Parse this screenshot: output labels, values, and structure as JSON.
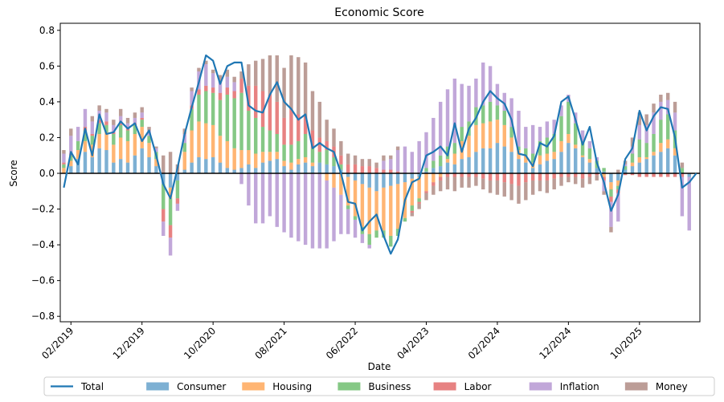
{
  "chart_data": {
    "type": "bar",
    "subtype": "stacked-bar-with-line",
    "title": "Economic Score",
    "xlabel": "Date",
    "ylabel": "Score",
    "ylim": [
      -0.82,
      0.85
    ],
    "yticks": [
      -0.8,
      -0.6,
      -0.4,
      -0.2,
      0.0,
      0.2,
      0.4,
      0.6,
      0.8
    ],
    "ytick_labels": [
      "−0.8",
      "−0.6",
      "−0.4",
      "−0.2",
      "0.0",
      "0.2",
      "0.4",
      "0.6",
      "0.8"
    ],
    "x_tick_labels": [
      "02/2019",
      "12/2019",
      "10/2020",
      "08/2021",
      "06/2022",
      "04/2023",
      "02/2024",
      "12/2024",
      "10/2025"
    ],
    "x_tick_every": 10,
    "x_tick_offset": 1,
    "grid": false,
    "legend_position": "bottom",
    "categories": [
      "2019-01",
      "2019-02",
      "2019-03",
      "2019-04",
      "2019-05",
      "2019-06",
      "2019-07",
      "2019-08",
      "2019-09",
      "2019-10",
      "2019-11",
      "2019-12",
      "2020-01",
      "2020-02",
      "2020-03",
      "2020-04",
      "2020-05",
      "2020-06",
      "2020-07",
      "2020-08",
      "2020-09",
      "2020-10",
      "2020-11",
      "2020-12",
      "2021-01",
      "2021-02",
      "2021-03",
      "2021-04",
      "2021-05",
      "2021-06",
      "2021-07",
      "2021-08",
      "2021-09",
      "2021-10",
      "2021-11",
      "2021-12",
      "2022-01",
      "2022-02",
      "2022-03",
      "2022-04",
      "2022-05",
      "2022-06",
      "2022-07",
      "2022-08",
      "2022-09",
      "2022-10",
      "2022-11",
      "2022-12",
      "2023-01",
      "2023-02",
      "2023-03",
      "2023-04",
      "2023-05",
      "2023-06",
      "2023-07",
      "2023-08",
      "2023-09",
      "2023-10",
      "2023-11",
      "2023-12",
      "2024-01",
      "2024-02",
      "2024-03",
      "2024-04",
      "2024-05",
      "2024-06",
      "2024-07",
      "2024-08",
      "2024-09",
      "2024-10",
      "2024-11",
      "2024-12",
      "2025-01",
      "2025-02",
      "2025-03",
      "2025-04",
      "2025-05",
      "2025-06",
      "2025-07",
      "2025-08",
      "2025-09",
      "2025-10",
      "2025-11",
      "2025-12",
      "2026-01",
      "2026-02",
      "2026-03",
      "2026-04",
      "2026-05",
      "2026-06"
    ],
    "total": [
      -0.08,
      0.12,
      0.05,
      0.25,
      0.1,
      0.33,
      0.22,
      0.23,
      0.29,
      0.25,
      0.28,
      0.18,
      0.24,
      0.1,
      -0.06,
      -0.14,
      0.03,
      0.22,
      0.37,
      0.51,
      0.66,
      0.63,
      0.5,
      0.6,
      0.62,
      0.62,
      0.38,
      0.35,
      0.34,
      0.44,
      0.51,
      0.4,
      0.36,
      0.3,
      0.33,
      0.14,
      0.17,
      0.14,
      0.12,
      0.0,
      -0.16,
      -0.17,
      -0.32,
      -0.27,
      -0.23,
      -0.35,
      -0.45,
      -0.37,
      -0.15,
      -0.05,
      -0.03,
      0.1,
      0.12,
      0.15,
      0.1,
      0.28,
      0.12,
      0.25,
      0.31,
      0.4,
      0.46,
      0.42,
      0.39,
      0.3,
      0.11,
      0.1,
      0.04,
      0.17,
      0.15,
      0.21,
      0.4,
      0.43,
      0.3,
      0.16,
      0.26,
      0.06,
      -0.05,
      -0.21,
      -0.12,
      0.08,
      0.14,
      0.35,
      0.24,
      0.32,
      0.37,
      0.36,
      0.2,
      -0.08,
      -0.05,
      0.0
    ],
    "series": [
      {
        "name": "Consumer",
        "color": "#1f77b4",
        "values": [
          0.0,
          0.04,
          0.08,
          0.12,
          0.09,
          0.14,
          0.13,
          0.06,
          0.08,
          0.06,
          0.1,
          0.14,
          0.09,
          0.04,
          -0.06,
          -0.08,
          -0.04,
          0.02,
          0.06,
          0.09,
          0.08,
          0.09,
          0.06,
          0.03,
          0.02,
          0.03,
          0.05,
          0.03,
          0.06,
          0.07,
          0.08,
          0.04,
          0.02,
          0.05,
          0.06,
          0.04,
          0.06,
          0.05,
          0.04,
          0.02,
          -0.02,
          -0.04,
          -0.06,
          -0.08,
          -0.1,
          -0.08,
          -0.07,
          -0.06,
          -0.05,
          -0.03,
          -0.02,
          0.01,
          0.03,
          0.04,
          0.06,
          0.05,
          0.08,
          0.09,
          0.12,
          0.14,
          0.14,
          0.17,
          0.15,
          0.12,
          0.08,
          0.06,
          0.03,
          0.05,
          0.07,
          0.08,
          0.12,
          0.17,
          0.14,
          0.09,
          0.06,
          0.03,
          0.01,
          -0.05,
          -0.04,
          0.02,
          0.04,
          0.06,
          0.08,
          0.1,
          0.12,
          0.14,
          0.1,
          0.0,
          -0.02,
          0.0
        ]
      },
      {
        "name": "Housing",
        "color": "#ff7f0e",
        "values": [
          0.03,
          0.03,
          0.05,
          0.06,
          0.07,
          0.08,
          0.1,
          0.1,
          0.12,
          0.12,
          0.12,
          0.12,
          0.08,
          0.04,
          0.0,
          -0.06,
          0.0,
          0.1,
          0.18,
          0.2,
          0.2,
          0.18,
          0.15,
          0.15,
          0.12,
          0.1,
          0.08,
          0.08,
          0.06,
          0.05,
          0.04,
          0.03,
          0.04,
          0.03,
          0.03,
          0.02,
          0.0,
          -0.04,
          -0.08,
          -0.12,
          -0.16,
          -0.2,
          -0.24,
          -0.26,
          -0.22,
          -0.24,
          -0.28,
          -0.25,
          -0.2,
          -0.15,
          -0.12,
          -0.1,
          -0.05,
          -0.02,
          0.02,
          0.06,
          0.1,
          0.12,
          0.15,
          0.14,
          0.15,
          0.13,
          0.12,
          0.08,
          0.05,
          0.04,
          0.03,
          0.05,
          0.04,
          0.04,
          0.06,
          0.05,
          0.02,
          0.01,
          0.02,
          0.0,
          -0.02,
          -0.04,
          -0.03,
          0.0,
          0.02,
          0.03,
          0.01,
          0.02,
          0.05,
          0.05,
          0.04,
          0.0,
          0.0,
          0.0
        ]
      },
      {
        "name": "Business",
        "color": "#2ca02c",
        "values": [
          0.02,
          0.03,
          0.05,
          0.06,
          0.05,
          0.06,
          0.04,
          0.06,
          0.07,
          0.06,
          0.05,
          0.04,
          0.04,
          0.04,
          -0.14,
          -0.15,
          -0.1,
          0.05,
          0.12,
          0.15,
          0.18,
          0.18,
          0.2,
          0.26,
          0.28,
          0.32,
          0.22,
          0.2,
          0.14,
          0.12,
          0.1,
          0.09,
          0.1,
          0.1,
          0.13,
          0.08,
          0.06,
          0.08,
          0.05,
          0.03,
          -0.02,
          -0.02,
          -0.04,
          -0.06,
          -0.04,
          -0.04,
          -0.06,
          -0.04,
          -0.02,
          -0.03,
          -0.02,
          0.02,
          0.04,
          0.06,
          0.07,
          0.06,
          0.08,
          0.08,
          0.1,
          0.1,
          0.11,
          0.08,
          0.08,
          0.06,
          0.02,
          0.04,
          0.05,
          0.08,
          0.09,
          0.1,
          0.14,
          0.18,
          0.12,
          0.08,
          0.06,
          0.04,
          0.02,
          -0.04,
          -0.02,
          0.02,
          0.05,
          0.1,
          0.08,
          0.1,
          0.13,
          0.14,
          0.1,
          0.03,
          0.0,
          0.0
        ]
      },
      {
        "name": "Labor",
        "color": "#d62728",
        "values": [
          0.01,
          0.01,
          0.0,
          0.02,
          0.01,
          0.02,
          0.02,
          0.01,
          0.01,
          0.01,
          0.01,
          0.01,
          0.0,
          0.0,
          -0.07,
          -0.07,
          -0.03,
          0.0,
          0.02,
          0.03,
          0.03,
          0.03,
          0.04,
          0.04,
          0.04,
          0.08,
          0.14,
          0.18,
          0.2,
          0.2,
          0.18,
          0.15,
          0.2,
          0.15,
          0.1,
          0.1,
          0.08,
          0.05,
          0.06,
          0.05,
          0.05,
          0.05,
          0.04,
          0.04,
          0.03,
          0.02,
          0.02,
          0.01,
          0.0,
          -0.01,
          -0.01,
          -0.01,
          -0.02,
          -0.02,
          -0.02,
          -0.02,
          -0.02,
          -0.02,
          -0.02,
          -0.03,
          -0.04,
          -0.04,
          -0.05,
          -0.06,
          -0.07,
          -0.05,
          -0.04,
          -0.04,
          -0.04,
          -0.03,
          -0.02,
          -0.02,
          -0.02,
          -0.03,
          -0.02,
          -0.01,
          -0.02,
          -0.03,
          -0.02,
          -0.01,
          -0.01,
          -0.02,
          -0.02,
          -0.02,
          -0.02,
          -0.02,
          -0.02,
          -0.02,
          0.0,
          0.0
        ]
      },
      {
        "name": "Inflation",
        "color": "#9467bd",
        "values": [
          0.05,
          0.1,
          0.08,
          0.1,
          0.07,
          0.05,
          0.05,
          0.04,
          0.04,
          0.03,
          0.03,
          0.03,
          0.03,
          0.02,
          -0.08,
          -0.1,
          -0.04,
          0.05,
          0.08,
          0.1,
          0.12,
          0.08,
          0.06,
          0.06,
          0.05,
          -0.06,
          -0.18,
          -0.28,
          -0.28,
          -0.24,
          -0.3,
          -0.33,
          -0.36,
          -0.38,
          -0.4,
          -0.42,
          -0.42,
          -0.38,
          -0.3,
          -0.22,
          -0.14,
          -0.1,
          -0.05,
          -0.02,
          0.0,
          0.05,
          0.06,
          0.12,
          0.15,
          0.12,
          0.18,
          0.2,
          0.24,
          0.3,
          0.32,
          0.36,
          0.24,
          0.2,
          0.16,
          0.24,
          0.2,
          0.12,
          0.1,
          0.16,
          0.2,
          0.12,
          0.16,
          0.08,
          0.09,
          0.08,
          0.06,
          0.04,
          0.06,
          0.06,
          0.04,
          0.02,
          -0.06,
          -0.14,
          -0.16,
          0.01,
          0.04,
          0.08,
          0.1,
          0.12,
          0.1,
          0.08,
          0.1,
          -0.22,
          -0.3,
          0.0
        ]
      },
      {
        "name": "Money",
        "color": "#8c564b",
        "values": [
          0.02,
          0.04,
          0.0,
          0.0,
          0.03,
          0.03,
          0.02,
          0.03,
          0.04,
          0.03,
          0.03,
          0.03,
          0.02,
          0.01,
          0.1,
          0.12,
          0.05,
          0.03,
          0.02,
          0.02,
          0.02,
          0.02,
          0.04,
          0.04,
          0.03,
          0.04,
          0.12,
          0.14,
          0.18,
          0.22,
          0.26,
          0.28,
          0.3,
          0.32,
          0.3,
          0.22,
          0.2,
          0.12,
          0.1,
          0.08,
          0.06,
          0.05,
          0.04,
          0.04,
          0.03,
          0.03,
          0.02,
          0.02,
          0.0,
          -0.02,
          -0.03,
          -0.04,
          -0.05,
          -0.06,
          -0.07,
          -0.08,
          -0.06,
          -0.06,
          -0.05,
          -0.06,
          -0.07,
          -0.08,
          -0.08,
          -0.09,
          -0.1,
          -0.1,
          -0.08,
          -0.06,
          -0.07,
          -0.06,
          -0.05,
          -0.03,
          -0.04,
          -0.05,
          -0.04,
          -0.03,
          -0.02,
          -0.03,
          0.02,
          0.02,
          0.05,
          0.07,
          0.06,
          0.05,
          0.04,
          0.04,
          0.06,
          0.03,
          0.0,
          0.0
        ]
      }
    ],
    "total_series": {
      "name": "Total",
      "color": "#1f77b4"
    },
    "legend": [
      {
        "name": "Total",
        "kind": "line",
        "color": "#1f77b4"
      },
      {
        "name": "Consumer",
        "kind": "bar",
        "color": "#1f77b4"
      },
      {
        "name": "Housing",
        "kind": "bar",
        "color": "#ff7f0e"
      },
      {
        "name": "Business",
        "kind": "bar",
        "color": "#2ca02c"
      },
      {
        "name": "Labor",
        "kind": "bar",
        "color": "#d62728"
      },
      {
        "name": "Inflation",
        "kind": "bar",
        "color": "#9467bd"
      },
      {
        "name": "Money",
        "kind": "bar",
        "color": "#8c564b"
      }
    ]
  }
}
